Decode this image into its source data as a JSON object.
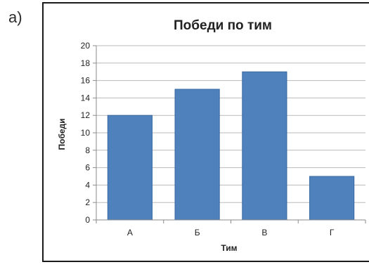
{
  "panel_label": "a)",
  "chart_data": {
    "type": "bar",
    "title": "Победи по тим",
    "xlabel": "Тим",
    "ylabel": "Победи",
    "categories": [
      "А",
      "Б",
      "В",
      "Г"
    ],
    "values": [
      12,
      15,
      17,
      5
    ],
    "ylim": [
      0,
      20
    ],
    "ytick_step": 2,
    "grid": true,
    "legend": "none",
    "colors": {
      "bar": "#4f81bd",
      "bar_edge": "#3a6aa3",
      "grid": "#b9b9b9",
      "axis": "#8a8a8a",
      "text": "#222222"
    }
  }
}
